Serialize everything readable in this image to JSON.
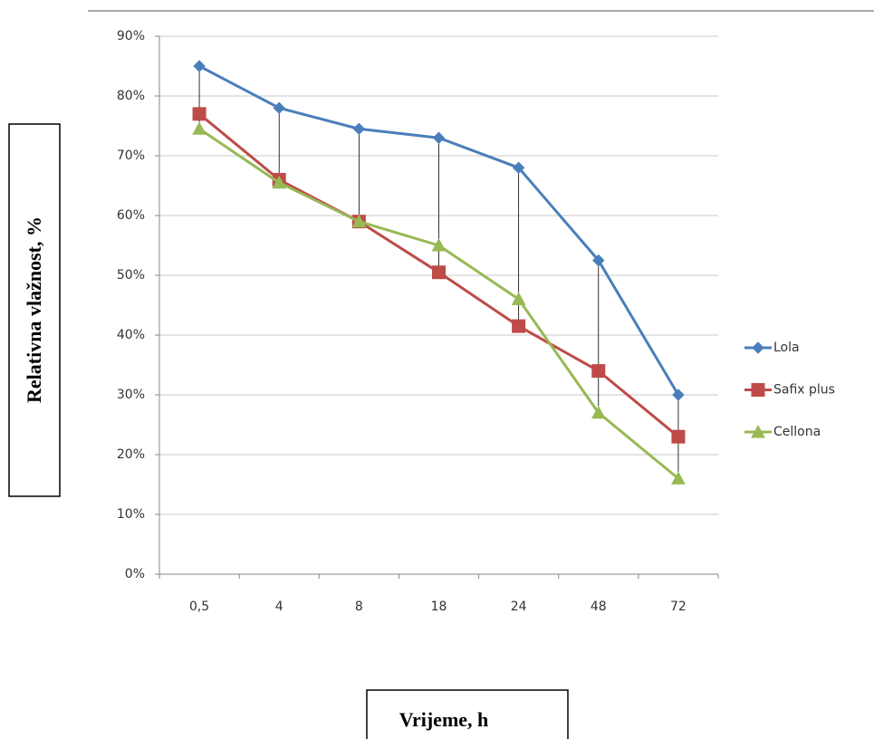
{
  "chart_data": {
    "type": "line",
    "y_label": "Relativna vlažnost, %",
    "x_label": "Vrijeme, h",
    "categories": [
      "0,5",
      "4",
      "8",
      "18",
      "24",
      "48",
      "72"
    ],
    "series": [
      {
        "name": "Lola",
        "color": "#4a7ebb",
        "marker": "diamond",
        "values": [
          85,
          78,
          74.5,
          73,
          68,
          52.5,
          30
        ]
      },
      {
        "name": "Safix plus",
        "color": "#be4b48",
        "marker": "square",
        "values": [
          77,
          66,
          59,
          50.5,
          41.5,
          34,
          23
        ]
      },
      {
        "name": "Cellona",
        "color": "#98b954",
        "marker": "triangle",
        "values": [
          74.5,
          65.5,
          59,
          55,
          46,
          27,
          16
        ]
      }
    ],
    "ylim": [
      0,
      90
    ],
    "yticks": [
      {
        "value": 0,
        "label": "0%"
      },
      {
        "value": 10,
        "label": "10%"
      },
      {
        "value": 20,
        "label": "20%"
      },
      {
        "value": 30,
        "label": "30%"
      },
      {
        "value": 40,
        "label": "40%"
      },
      {
        "value": 50,
        "label": "50%"
      },
      {
        "value": 60,
        "label": "60%"
      },
      {
        "value": 70,
        "label": "70%"
      },
      {
        "value": 80,
        "label": "80%"
      },
      {
        "value": 90,
        "label": "90%"
      }
    ],
    "grid": true,
    "hilo_lines": true,
    "legend": "right"
  }
}
